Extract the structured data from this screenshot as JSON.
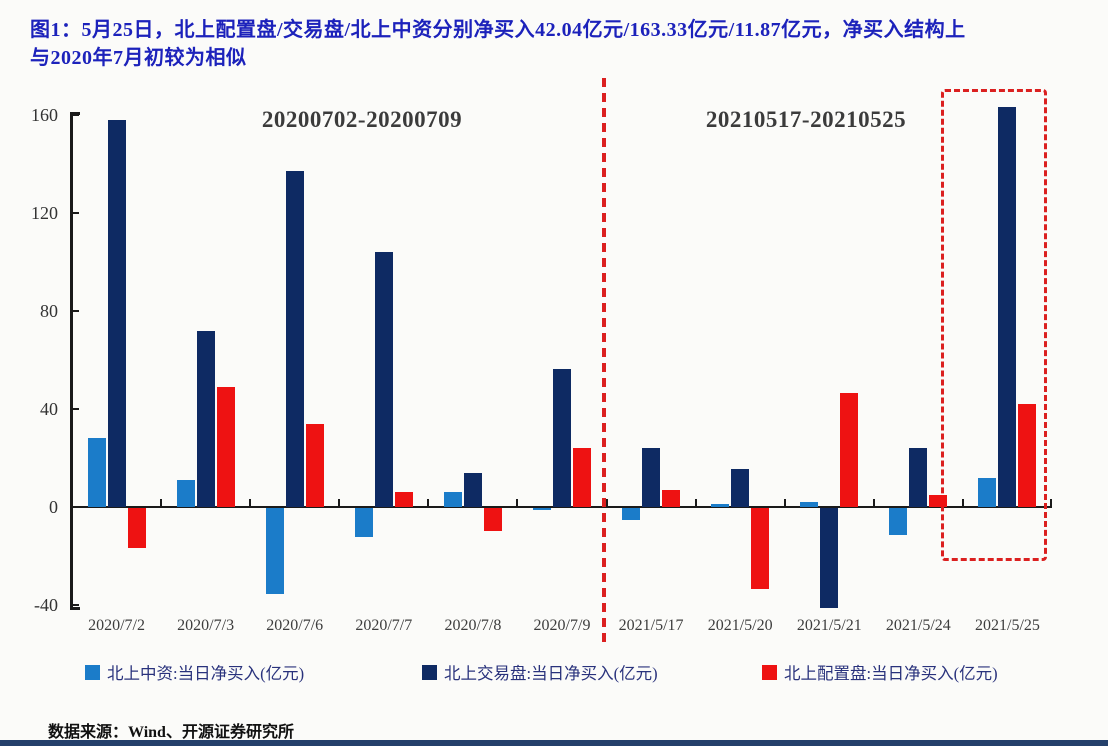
{
  "header": {
    "title_line1": "图1：5月25日，北上配置盘/交易盘/北上中资分别净买入42.04亿元/163.33亿元/11.87亿元，净买入结构上",
    "title_line2": "与2020年7月初较为相似"
  },
  "chart_data": {
    "type": "bar",
    "categories": [
      "2020/7/2",
      "2020/7/3",
      "2020/7/6",
      "2020/7/7",
      "2020/7/8",
      "2020/7/9",
      "2021/5/17",
      "2021/5/20",
      "2021/5/21",
      "2021/5/24",
      "2021/5/25"
    ],
    "series": [
      {
        "name": "北上中资:当日净买入(亿元)",
        "color": "#1B7CC9",
        "values": [
          28,
          11,
          -35,
          -12,
          6,
          -1,
          -5,
          1.2,
          2.2,
          -11,
          11.87
        ]
      },
      {
        "name": "北上交易盘:当日净买入(亿元)",
        "color": "#0E2A63",
        "values": [
          158,
          72,
          137,
          104,
          14,
          56.5,
          24,
          15.5,
          -41,
          24,
          163.33
        ]
      },
      {
        "name": "北上配置盘:当日净买入(亿元)",
        "color": "#EE1212",
        "values": [
          -16.5,
          49,
          34,
          6,
          -9.5,
          24,
          7,
          -33,
          46.5,
          5,
          42.04
        ]
      }
    ],
    "title": "",
    "xlabel": "",
    "ylabel": "",
    "ylim": [
      -40,
      165
    ],
    "yticks": [
      160,
      120,
      80,
      40,
      0,
      -40
    ],
    "grid": false,
    "legend_position": "bottom",
    "annotations": {
      "period1": "20200702-20200709",
      "period2": "20210517-20210525",
      "divider_after_category": "2020/7/9",
      "highlight_box_category": "2021/5/25"
    }
  },
  "footer": {
    "source": "数据来源：Wind、开源证券研究所"
  },
  "colors": {
    "title_blue": "#1C22BB",
    "dashed_red": "#DB2020",
    "axis": "#1a1a1a",
    "legend_text": "#29327C",
    "bottom_rule": "#24406B"
  }
}
